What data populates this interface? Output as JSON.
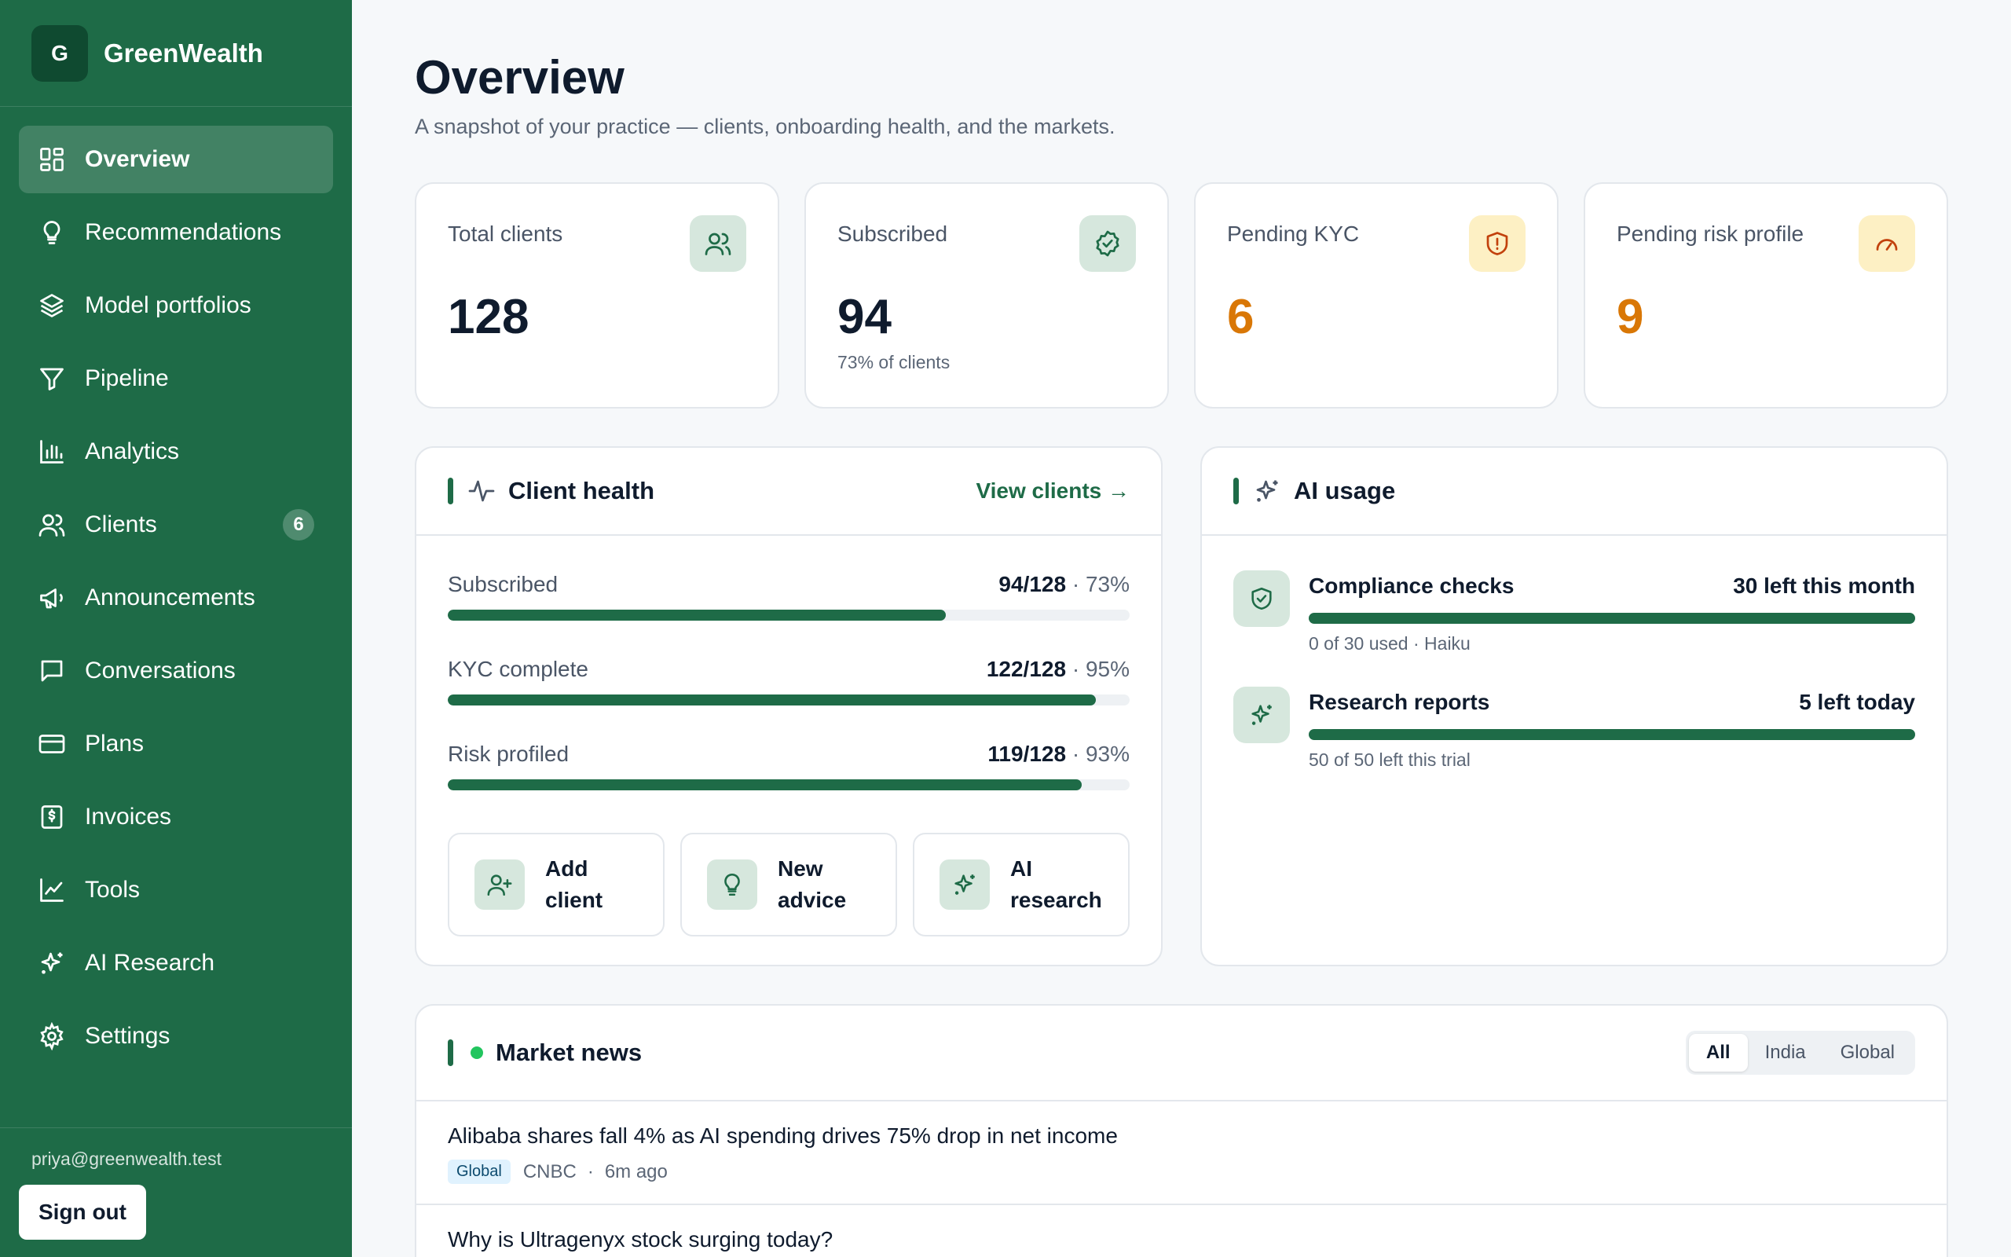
{
  "brand": {
    "logo_letter": "G",
    "name": "GreenWealth"
  },
  "nav": [
    {
      "label": "Overview",
      "icon": "dashboard-icon",
      "active": true
    },
    {
      "label": "Recommendations",
      "icon": "lightbulb-icon"
    },
    {
      "label": "Model portfolios",
      "icon": "layers-icon"
    },
    {
      "label": "Pipeline",
      "icon": "filter-icon"
    },
    {
      "label": "Analytics",
      "icon": "bar-chart-icon"
    },
    {
      "label": "Clients",
      "icon": "users-icon",
      "badge": "6"
    },
    {
      "label": "Announcements",
      "icon": "megaphone-icon"
    },
    {
      "label": "Conversations",
      "icon": "chat-icon"
    },
    {
      "label": "Plans",
      "icon": "credit-card-icon"
    },
    {
      "label": "Invoices",
      "icon": "invoice-icon"
    },
    {
      "label": "Tools",
      "icon": "line-chart-icon"
    },
    {
      "label": "AI Research",
      "icon": "sparkles-icon"
    },
    {
      "label": "Settings",
      "icon": "gear-icon"
    }
  ],
  "footer": {
    "email": "priya@greenwealth.test",
    "signout_label": "Sign out"
  },
  "page": {
    "title": "Overview",
    "subtitle": "A snapshot of your practice — clients, onboarding health, and the markets."
  },
  "stats": [
    {
      "label": "Total clients",
      "value": "128",
      "note": "",
      "icon": "users-icon"
    },
    {
      "label": "Subscribed",
      "value": "94",
      "note": "73% of clients",
      "icon": "badge-check-icon"
    },
    {
      "label": "Pending KYC",
      "value": "6",
      "note": "",
      "icon": "shield-alert-icon"
    },
    {
      "label": "Pending risk profile",
      "value": "9",
      "note": "",
      "icon": "gauge-icon"
    }
  ],
  "client_health": {
    "title": "Client health",
    "view_link": "View clients →",
    "metrics": [
      {
        "label": "Subscribed",
        "count": "94/128",
        "pct_label": "· 73%",
        "fraction": 0.73
      },
      {
        "label": "KYC complete",
        "count": "122/128",
        "pct_label": "· 95%",
        "fraction": 0.95
      },
      {
        "label": "Risk profiled",
        "count": "119/128",
        "pct_label": "· 93%",
        "fraction": 0.93
      }
    ],
    "actions": [
      {
        "label": "Add client",
        "icon": "user-plus-icon"
      },
      {
        "label": "New advice",
        "icon": "lightbulb-icon"
      },
      {
        "label": "AI research",
        "icon": "sparkles-icon"
      }
    ]
  },
  "ai_usage": {
    "title": "AI usage",
    "rows": [
      {
        "name": "Compliance checks",
        "left": "30 left this month",
        "note": "0 of 30 used · Haiku",
        "icon": "shield-check-icon"
      },
      {
        "name": "Research reports",
        "left": "5 left today",
        "note": "50 of 50 left this trial",
        "icon": "sparkles-icon"
      }
    ]
  },
  "market_news": {
    "title": "Market news",
    "filters": [
      "All",
      "India",
      "Global"
    ],
    "active_filter": "All",
    "items": [
      {
        "title": "Alibaba shares fall 4% as AI spending drives 75% drop in net income",
        "tag": "Global",
        "source": "CNBC",
        "time": "6m ago"
      },
      {
        "title": "Why is Ultragenyx stock surging today?"
      }
    ]
  },
  "colors": {
    "brand": "#1e6b47",
    "accent_orange": "#d97706",
    "live_dot": "#22c55e"
  }
}
